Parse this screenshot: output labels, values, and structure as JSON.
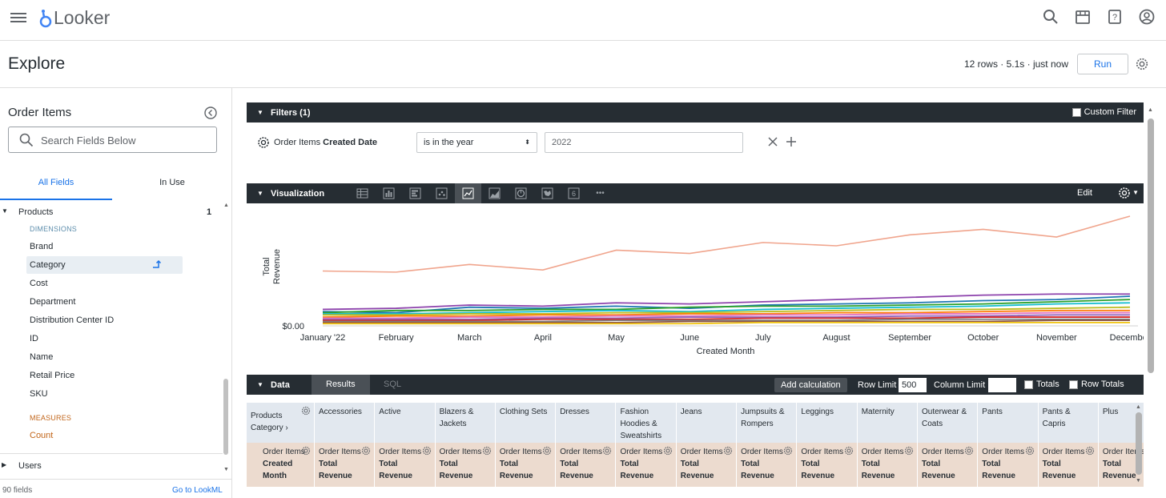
{
  "app": {
    "logo_text": "Looker",
    "icons": [
      "search-icon",
      "marketplace-icon",
      "help-icon",
      "account-icon"
    ]
  },
  "header": {
    "title": "Explore",
    "run_meta": "12 rows · 5.1s · just now",
    "run_label": "Run"
  },
  "sidebar": {
    "title": "Order Items",
    "search_placeholder": "Search Fields Below",
    "tabs": [
      "All Fields",
      "In Use"
    ],
    "groups": [
      {
        "label": "Products",
        "count": "1"
      },
      {
        "label": "Users"
      }
    ],
    "dimensions_label": "DIMENSIONS",
    "dimensions": [
      "Brand",
      "Category",
      "Cost",
      "Department",
      "Distribution Center ID",
      "ID",
      "Name",
      "Retail Price",
      "SKU"
    ],
    "measures_label": "MEASURES",
    "measures": [
      "Count"
    ],
    "field_count": "90 fields",
    "go_to_lookml": "Go to LookML"
  },
  "filters": {
    "title": "Filters (1)",
    "custom_filter": "Custom Filter",
    "field_name_prefix": "Order Items",
    "field_name_bold": "Created Date",
    "operator": "is in the year",
    "value": "2022"
  },
  "visualization": {
    "title": "Visualization",
    "edit_label": "Edit",
    "single_value_glyph": "6",
    "more_glyph": "•••"
  },
  "chart_data": {
    "type": "line",
    "xlabel": "Created Month",
    "ylabel": "Total Revenue",
    "y_tick_label": "$0.00",
    "categories": [
      "January '22",
      "February",
      "March",
      "April",
      "May",
      "June",
      "July",
      "August",
      "September",
      "October",
      "November",
      "December"
    ],
    "series": [
      {
        "color": "#f0a48c",
        "values": [
          0.5,
          0.49,
          0.56,
          0.51,
          0.69,
          0.66,
          0.76,
          0.73,
          0.83,
          0.88,
          0.81,
          1.0
        ]
      },
      {
        "color": "#8e44ad",
        "values": [
          0.15,
          0.16,
          0.19,
          0.18,
          0.21,
          0.2,
          0.22,
          0.24,
          0.26,
          0.28,
          0.29,
          0.29
        ]
      },
      {
        "color": "#1f77b4",
        "values": [
          0.13,
          0.12,
          0.17,
          0.16,
          0.18,
          0.16,
          0.19,
          0.2,
          0.21,
          0.23,
          0.24,
          0.27
        ]
      },
      {
        "color": "#2ca02c",
        "values": [
          0.12,
          0.14,
          0.14,
          0.15,
          0.15,
          0.17,
          0.18,
          0.18,
          0.19,
          0.2,
          0.22,
          0.24
        ]
      },
      {
        "color": "#17becf",
        "values": [
          0.11,
          0.11,
          0.12,
          0.13,
          0.14,
          0.13,
          0.15,
          0.16,
          0.17,
          0.18,
          0.2,
          0.21
        ]
      },
      {
        "color": "#bcbd22",
        "values": [
          0.1,
          0.1,
          0.11,
          0.11,
          0.12,
          0.12,
          0.13,
          0.14,
          0.15,
          0.15,
          0.16,
          0.17
        ]
      },
      {
        "color": "#ff7f0e",
        "values": [
          0.08,
          0.09,
          0.09,
          0.1,
          0.1,
          0.11,
          0.11,
          0.12,
          0.12,
          0.13,
          0.14,
          0.14
        ]
      },
      {
        "color": "#e377c2",
        "values": [
          0.07,
          0.07,
          0.08,
          0.08,
          0.09,
          0.09,
          0.1,
          0.1,
          0.11,
          0.11,
          0.12,
          0.12
        ]
      },
      {
        "color": "#9467bd",
        "values": [
          0.06,
          0.06,
          0.06,
          0.07,
          0.07,
          0.08,
          0.08,
          0.08,
          0.09,
          0.09,
          0.1,
          0.1
        ]
      },
      {
        "color": "#d62728",
        "values": [
          0.05,
          0.05,
          0.05,
          0.06,
          0.06,
          0.06,
          0.07,
          0.07,
          0.07,
          0.08,
          0.08,
          0.08
        ]
      },
      {
        "color": "#7f7f7f",
        "values": [
          0.04,
          0.04,
          0.04,
          0.04,
          0.05,
          0.05,
          0.05,
          0.05,
          0.06,
          0.06,
          0.06,
          0.06
        ]
      },
      {
        "color": "#8c564b",
        "values": [
          0.03,
          0.03,
          0.03,
          0.03,
          0.03,
          0.04,
          0.04,
          0.04,
          0.04,
          0.04,
          0.05,
          0.05
        ]
      },
      {
        "color": "#f1c40f",
        "values": [
          0.02,
          0.02,
          0.02,
          0.02,
          0.02,
          0.02,
          0.03,
          0.03,
          0.03,
          0.03,
          0.03,
          0.03
        ]
      }
    ]
  },
  "data_panel": {
    "title": "Data",
    "tabs": [
      "Results",
      "SQL"
    ],
    "add_calculation": "Add calculation",
    "row_limit_label": "Row Limit",
    "row_limit_value": "500",
    "column_limit_label": "Column Limit",
    "totals_label": "Totals",
    "row_totals_label": "Row Totals",
    "pivot_header": "Products Category",
    "pivot_columns": [
      "Accessories",
      "Active",
      "Blazers & Jackets",
      "Clothing Sets",
      "Dresses",
      "Fashion Hoodies & Sweatshirts",
      "Jeans",
      "Jumpsuits & Rompers",
      "Leggings",
      "Maternity",
      "Outerwear & Coats",
      "Pants",
      "Pants & Capris",
      "Plus"
    ],
    "row_header": {
      "line1": "Order Items",
      "line2": "Created Month"
    },
    "measure_header": {
      "line1": "Order Items",
      "line2": "Total Revenue"
    }
  }
}
